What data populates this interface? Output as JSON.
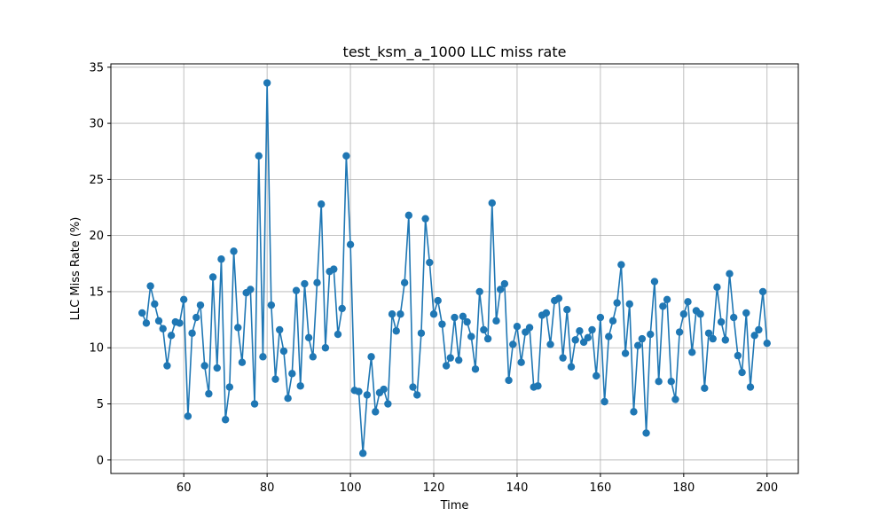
{
  "chart_data": {
    "type": "line",
    "title": "test_ksm_a_1000 LLC miss rate",
    "xlabel": "Time",
    "ylabel": "LLC Miss Rate (%)",
    "xlim": [
      42.5,
      207.5
    ],
    "ylim": [
      -1.2,
      35.3
    ],
    "xticks": [
      60,
      80,
      100,
      120,
      140,
      160,
      180,
      200
    ],
    "yticks": [
      0,
      5,
      10,
      15,
      20,
      25,
      30,
      35
    ],
    "grid": true,
    "marker": "circle",
    "color": "#1f77b4",
    "x_start": 50,
    "x_step": 1,
    "values": [
      13.1,
      12.2,
      15.5,
      13.9,
      12.4,
      11.7,
      8.4,
      11.1,
      12.3,
      12.2,
      14.3,
      3.9,
      11.3,
      12.7,
      13.8,
      8.4,
      5.9,
      16.3,
      8.2,
      17.9,
      3.6,
      6.5,
      18.6,
      11.8,
      8.7,
      14.9,
      15.2,
      5.0,
      27.1,
      9.2,
      33.6,
      13.8,
      7.2,
      11.6,
      9.7,
      5.5,
      7.7,
      15.1,
      6.6,
      15.7,
      10.9,
      9.2,
      15.8,
      22.8,
      10.0,
      16.8,
      17.0,
      11.2,
      13.5,
      27.1,
      19.2,
      6.2,
      6.1,
      0.6,
      5.8,
      9.2,
      4.3,
      6.0,
      6.3,
      5.0,
      13.0,
      11.5,
      13.0,
      15.8,
      21.8,
      6.5,
      5.8,
      11.3,
      21.5,
      17.6,
      13.0,
      14.2,
      12.1,
      8.4,
      9.1,
      12.7,
      8.9,
      12.8,
      12.3,
      11.0,
      8.1,
      15.0,
      11.6,
      10.8,
      22.9,
      12.4,
      15.2,
      15.7,
      7.1,
      10.3,
      11.9,
      8.7,
      11.4,
      11.8,
      6.5,
      6.6,
      12.9,
      13.1,
      10.3,
      14.2,
      14.4,
      9.1,
      13.4,
      8.3,
      10.7,
      11.5,
      10.5,
      10.9,
      11.6,
      7.5,
      12.7,
      5.2,
      11.0,
      12.4,
      14.0,
      17.4,
      9.5,
      13.9,
      4.3,
      10.2,
      10.8,
      2.4,
      11.2,
      15.9,
      7.0,
      13.7,
      14.3,
      7.0,
      5.4,
      11.4,
      13.0,
      14.1,
      9.6,
      13.3,
      13.0,
      6.4,
      11.3,
      10.8,
      15.4,
      12.3,
      10.7,
      16.6,
      12.7,
      9.3,
      7.8,
      13.1,
      6.5,
      11.1,
      11.6,
      15.0,
      10.4
    ]
  }
}
